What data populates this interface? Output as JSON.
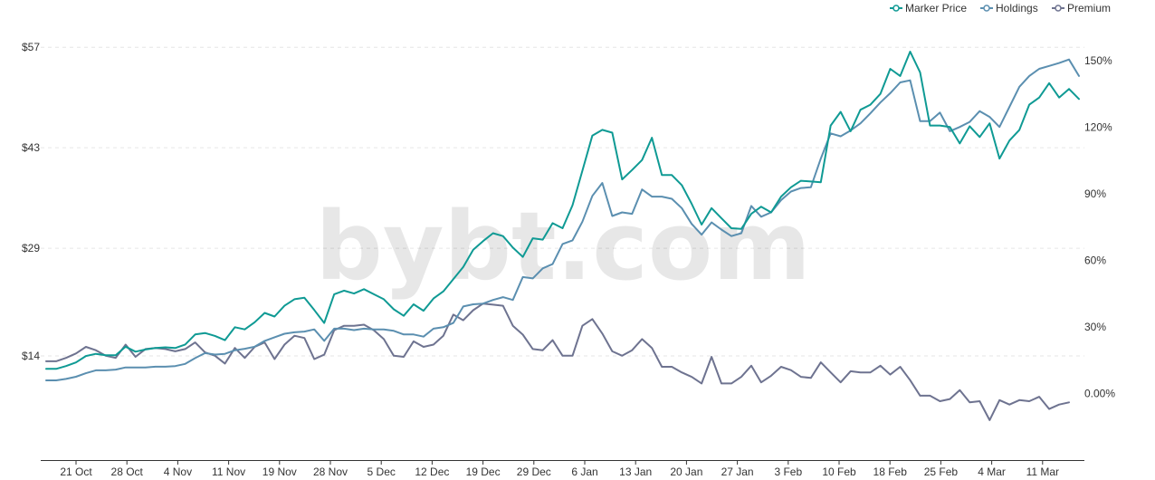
{
  "watermark": "bybt.com",
  "colors": {
    "marker_price": "#0f9a94",
    "holdings": "#5b8fb0",
    "premium": "#6e7390",
    "grid": "#e6e6e6",
    "axis": "#333333"
  },
  "chart_data": {
    "type": "line",
    "legend_position": "top-right",
    "grid": true,
    "y_left": {
      "ticks": [
        "$14",
        "$29",
        "$43",
        "$57"
      ],
      "tick_values": [
        14,
        29,
        43,
        57
      ],
      "range": [
        -0.5,
        59.8
      ]
    },
    "y_right": {
      "ticks": [
        "0.00%",
        "30%",
        "60%",
        "90%",
        "120%",
        "150%"
      ],
      "tick_values": [
        0,
        30,
        60,
        90,
        120,
        150
      ],
      "range": [
        -30,
        165
      ]
    },
    "x_ticks": [
      "21 Oct",
      "28 Oct",
      "4 Nov",
      "11 Nov",
      "19 Nov",
      "28 Nov",
      "5 Dec",
      "12 Dec",
      "19 Dec",
      "29 Dec",
      "6 Jan",
      "13 Jan",
      "20 Jan",
      "27 Jan",
      "3 Feb",
      "10 Feb",
      "18 Feb",
      "25 Feb",
      "4 Mar",
      "11 Mar"
    ],
    "series": [
      {
        "name": "Marker Price",
        "axis": "left",
        "color": "#0f9a94",
        "values": [
          12.2,
          12.2,
          12.6,
          13.1,
          14.0,
          14.3,
          14.1,
          14.1,
          15.3,
          14.6,
          14.9,
          15.1,
          15.2,
          15.1,
          15.6,
          17.0,
          17.2,
          16.8,
          16.2,
          18.0,
          17.7,
          18.7,
          20.0,
          19.5,
          21.0,
          21.9,
          22.1,
          20.4,
          18.6,
          22.6,
          23.1,
          22.7,
          23.3,
          22.6,
          21.9,
          20.5,
          19.6,
          21.2,
          20.3,
          22.0,
          23.0,
          24.7,
          26.4,
          28.8,
          30.0,
          31.1,
          30.7,
          29.1,
          27.8,
          30.4,
          30.2,
          32.5,
          31.8,
          35.0,
          39.8,
          44.7,
          45.5,
          45.1,
          38.6,
          39.9,
          41.3,
          44.4,
          39.2,
          39.2,
          37.8,
          35.2,
          32.3,
          34.6,
          33.2,
          31.8,
          31.7,
          33.8,
          34.8,
          34.0,
          36.2,
          37.5,
          38.4,
          38.3,
          38.2,
          46.1,
          48.0,
          45.3,
          48.3,
          49.0,
          50.5,
          54.0,
          53.0,
          56.4,
          53.5,
          46.1,
          46.1,
          45.9,
          43.6,
          46.0,
          44.5,
          46.4,
          41.5,
          44.0,
          45.5,
          49.0,
          50.0,
          52.0,
          50.0,
          51.2,
          49.8
        ]
      },
      {
        "name": "Holdings",
        "axis": "left",
        "color": "#5b8fb0",
        "values": [
          10.6,
          10.6,
          10.8,
          11.1,
          11.6,
          12.0,
          12.0,
          12.1,
          12.4,
          12.4,
          12.4,
          12.5,
          12.5,
          12.6,
          12.9,
          13.7,
          14.4,
          14.2,
          14.3,
          14.8,
          15.0,
          15.3,
          16.1,
          16.6,
          17.1,
          17.3,
          17.4,
          17.7,
          16.1,
          17.8,
          17.8,
          17.6,
          17.8,
          17.7,
          17.7,
          17.5,
          17.0,
          17.0,
          16.7,
          17.8,
          18.0,
          18.6,
          20.9,
          21.2,
          21.3,
          21.8,
          22.2,
          21.8,
          25.0,
          24.8,
          26.2,
          26.8,
          29.6,
          30.1,
          32.7,
          36.3,
          38.1,
          33.5,
          34.0,
          33.8,
          37.2,
          36.2,
          36.2,
          35.9,
          34.6,
          32.4,
          30.9,
          32.6,
          31.6,
          30.7,
          31.1,
          34.9,
          33.4,
          34.0,
          35.7,
          36.9,
          37.4,
          37.5,
          41.5,
          45.0,
          44.6,
          45.4,
          46.4,
          47.8,
          49.3,
          50.6,
          52.1,
          52.4,
          46.7,
          46.7,
          47.9,
          45.3,
          45.9,
          46.6,
          48.1,
          47.3,
          45.9,
          48.7,
          51.5,
          53.0,
          54.0,
          54.4,
          54.8,
          55.3,
          53.0
        ]
      },
      {
        "name": "Premium",
        "axis": "right",
        "color": "#6e7390",
        "values": [
          14.5,
          14.5,
          16,
          18,
          21,
          19.5,
          17,
          16,
          22,
          16.5,
          20,
          20.5,
          20,
          19,
          20,
          23,
          18.5,
          17,
          13.5,
          20.5,
          16,
          21,
          23,
          15.5,
          22,
          26,
          25,
          15.5,
          17.5,
          28.5,
          30.5,
          30.5,
          31,
          28.5,
          24.5,
          17,
          16.5,
          23.5,
          21,
          22,
          26,
          35.5,
          33,
          37.5,
          40.5,
          40,
          39.5,
          30.5,
          26.5,
          20,
          19.5,
          24,
          17,
          17,
          30.5,
          33.5,
          27,
          19,
          17,
          19.5,
          24.5,
          20.5,
          12,
          12,
          9.5,
          7.5,
          4.5,
          16.5,
          4.5,
          4.5,
          7.5,
          12.5,
          5,
          8,
          12,
          10.5,
          7.5,
          7,
          14,
          9.5,
          5,
          10,
          9.5,
          9.5,
          12.5,
          8.5,
          12,
          6,
          -1,
          -1,
          -3.5,
          -2.5,
          1.5,
          -4,
          -3.5,
          -12,
          -3,
          -5,
          -3,
          -3.5,
          -1.5,
          -7,
          -5,
          -4
        ]
      }
    ]
  }
}
